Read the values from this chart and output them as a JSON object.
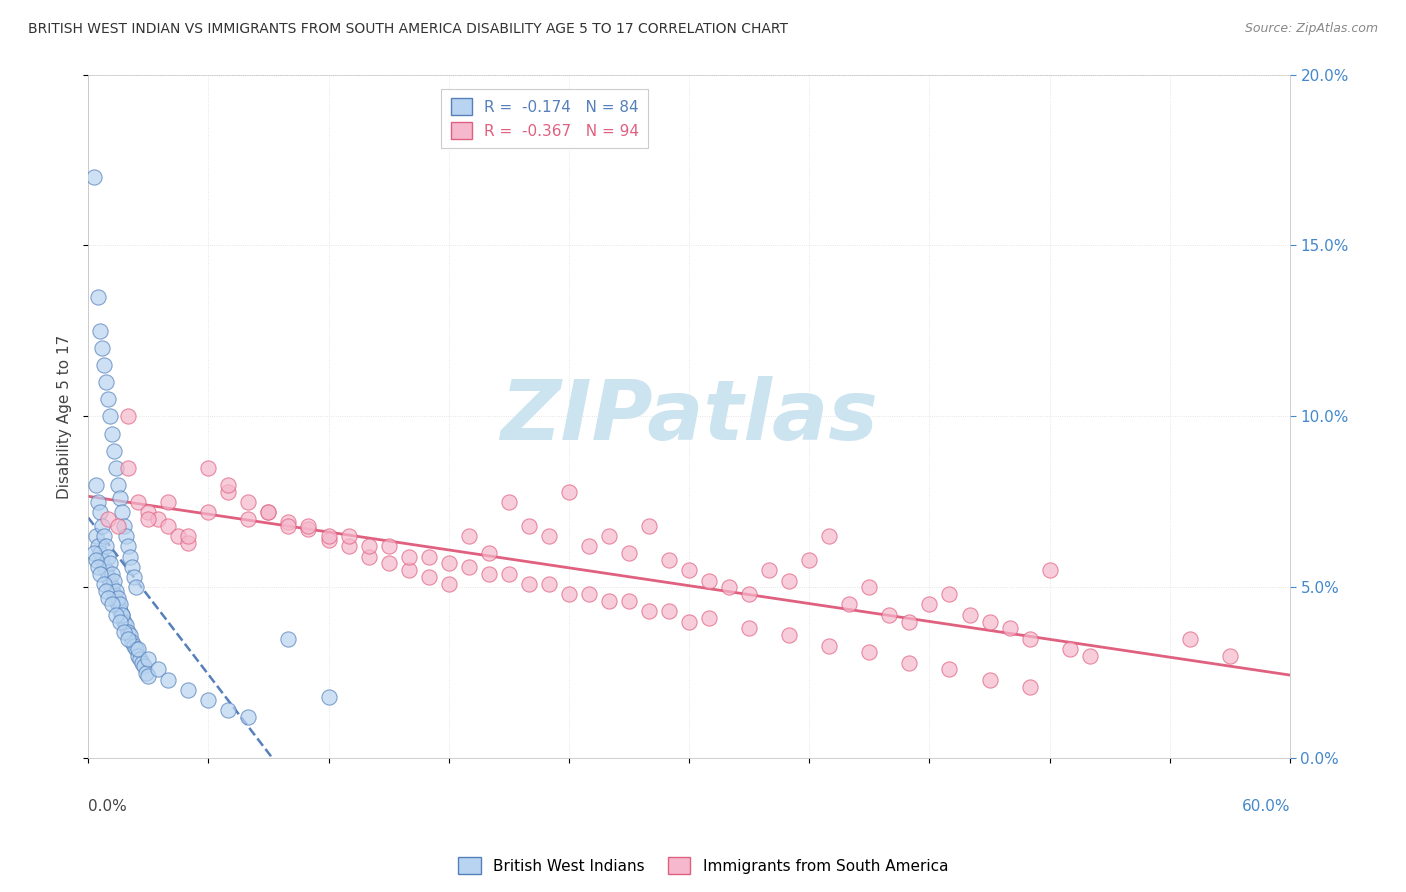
{
  "title": "BRITISH WEST INDIAN VS IMMIGRANTS FROM SOUTH AMERICA DISABILITY AGE 5 TO 17 CORRELATION CHART",
  "source": "Source: ZipAtlas.com",
  "ylabel": "Disability Age 5 to 17",
  "r1": -0.174,
  "n1": 84,
  "r2": -0.367,
  "n2": 94,
  "color1": "#b8d4f0",
  "color2": "#f5b8cc",
  "trendline1_color": "#5580bb",
  "trendline2_color": "#e06080",
  "watermark": "ZIPatlas",
  "watermark_color": "#cce4f0",
  "xmin": 0.0,
  "xmax": 60.0,
  "ymin": 0.0,
  "ymax": 20.0,
  "right_yticks": [
    0.0,
    5.0,
    10.0,
    15.0,
    20.0
  ],
  "blue_points_x": [
    0.3,
    0.4,
    0.5,
    0.6,
    0.7,
    0.8,
    0.9,
    1.0,
    1.1,
    1.2,
    1.3,
    1.4,
    1.5,
    1.6,
    1.7,
    1.8,
    1.9,
    2.0,
    2.1,
    2.2,
    2.3,
    2.4,
    2.5,
    2.6,
    2.7,
    2.8,
    2.9,
    3.0,
    0.5,
    0.6,
    0.7,
    0.8,
    0.9,
    1.0,
    1.1,
    1.2,
    1.3,
    1.4,
    1.5,
    1.6,
    1.7,
    1.8,
    1.9,
    2.0,
    2.1,
    2.2,
    2.3,
    2.4,
    0.4,
    0.5,
    0.6,
    0.7,
    0.8,
    0.9,
    1.0,
    1.1,
    1.2,
    1.3,
    1.4,
    1.5,
    1.6,
    1.7,
    0.3,
    0.4,
    0.5,
    0.6,
    0.8,
    0.9,
    1.0,
    1.2,
    1.4,
    1.6,
    1.8,
    2.0,
    2.5,
    3.0,
    3.5,
    4.0,
    5.0,
    6.0,
    7.0,
    8.0,
    10.0,
    12.0
  ],
  "blue_points_y": [
    17.0,
    6.5,
    6.2,
    6.0,
    5.8,
    5.6,
    5.5,
    5.3,
    5.1,
    5.0,
    4.8,
    4.6,
    4.5,
    4.3,
    4.2,
    4.0,
    3.9,
    3.7,
    3.6,
    3.4,
    3.3,
    3.2,
    3.0,
    2.9,
    2.8,
    2.7,
    2.5,
    2.4,
    13.5,
    12.5,
    12.0,
    11.5,
    11.0,
    10.5,
    10.0,
    9.5,
    9.0,
    8.5,
    8.0,
    7.6,
    7.2,
    6.8,
    6.5,
    6.2,
    5.9,
    5.6,
    5.3,
    5.0,
    8.0,
    7.5,
    7.2,
    6.8,
    6.5,
    6.2,
    5.9,
    5.7,
    5.4,
    5.2,
    4.9,
    4.7,
    4.5,
    4.2,
    6.0,
    5.8,
    5.6,
    5.4,
    5.1,
    4.9,
    4.7,
    4.5,
    4.2,
    4.0,
    3.7,
    3.5,
    3.2,
    2.9,
    2.6,
    2.3,
    2.0,
    1.7,
    1.4,
    1.2,
    3.5,
    1.8
  ],
  "pink_points_x": [
    1.0,
    1.5,
    2.0,
    2.5,
    3.0,
    3.5,
    4.0,
    4.5,
    5.0,
    6.0,
    7.0,
    8.0,
    9.0,
    10.0,
    11.0,
    12.0,
    13.0,
    14.0,
    15.0,
    16.0,
    17.0,
    18.0,
    19.0,
    20.0,
    21.0,
    22.0,
    23.0,
    24.0,
    25.0,
    26.0,
    27.0,
    28.0,
    29.0,
    30.0,
    31.0,
    32.0,
    33.0,
    34.0,
    35.0,
    36.0,
    37.0,
    38.0,
    39.0,
    40.0,
    41.0,
    42.0,
    43.0,
    44.0,
    45.0,
    46.0,
    47.0,
    48.0,
    49.0,
    50.0,
    55.0,
    57.0,
    2.0,
    3.0,
    5.0,
    7.0,
    9.0,
    11.0,
    13.0,
    15.0,
    17.0,
    19.0,
    21.0,
    23.0,
    25.0,
    27.0,
    29.0,
    31.0,
    33.0,
    35.0,
    37.0,
    39.0,
    41.0,
    43.0,
    45.0,
    47.0,
    4.0,
    6.0,
    8.0,
    10.0,
    12.0,
    14.0,
    16.0,
    18.0,
    20.0,
    22.0,
    24.0,
    26.0,
    28.0,
    30.0
  ],
  "pink_points_y": [
    7.0,
    6.8,
    8.5,
    7.5,
    7.2,
    7.0,
    6.8,
    6.5,
    6.3,
    8.5,
    7.8,
    7.5,
    7.2,
    6.9,
    6.7,
    6.4,
    6.2,
    5.9,
    5.7,
    5.5,
    5.3,
    5.1,
    6.5,
    6.0,
    7.5,
    6.8,
    6.5,
    7.8,
    6.2,
    6.5,
    6.0,
    6.8,
    5.8,
    5.5,
    5.2,
    5.0,
    4.8,
    5.5,
    5.2,
    5.8,
    6.5,
    4.5,
    5.0,
    4.2,
    4.0,
    4.5,
    4.8,
    4.2,
    4.0,
    3.8,
    3.5,
    5.5,
    3.2,
    3.0,
    3.5,
    3.0,
    10.0,
    7.0,
    6.5,
    8.0,
    7.2,
    6.8,
    6.5,
    6.2,
    5.9,
    5.6,
    5.4,
    5.1,
    4.8,
    4.6,
    4.3,
    4.1,
    3.8,
    3.6,
    3.3,
    3.1,
    2.8,
    2.6,
    2.3,
    2.1,
    7.5,
    7.2,
    7.0,
    6.8,
    6.5,
    6.2,
    5.9,
    5.7,
    5.4,
    5.1,
    4.8,
    4.6,
    4.3,
    4.0
  ]
}
